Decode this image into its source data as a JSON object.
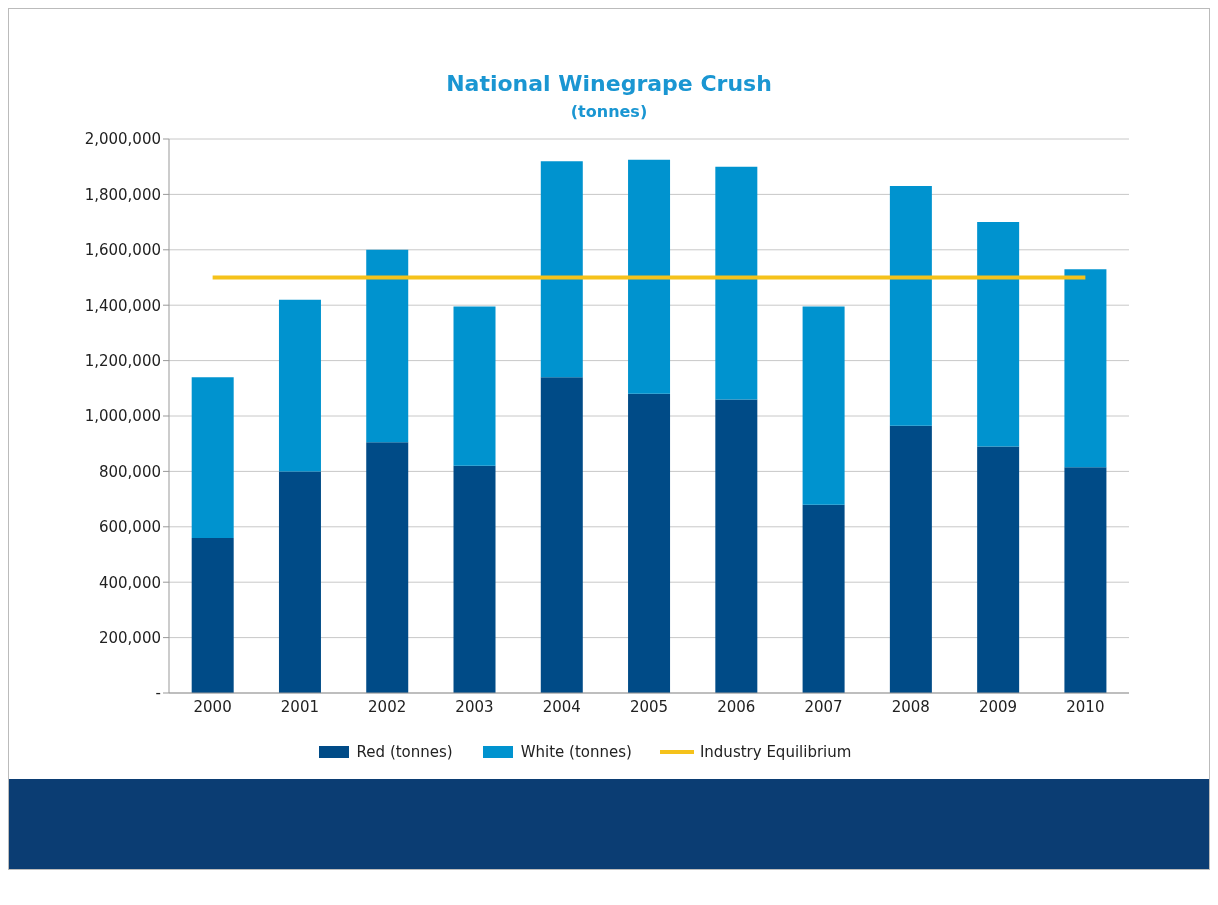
{
  "chart_data": {
    "type": "bar",
    "title": "National Winegrape Crush",
    "subtitle": "(tonnes)",
    "categories": [
      "2000",
      "2001",
      "2002",
      "2003",
      "2004",
      "2005",
      "2006",
      "2007",
      "2008",
      "2009",
      "2010"
    ],
    "stacked": true,
    "series": [
      {
        "name": "Red (tonnes)",
        "color": "#004b87",
        "values": [
          560000,
          800000,
          905000,
          820000,
          1140000,
          1080000,
          1060000,
          680000,
          965000,
          890000,
          815000
        ]
      },
      {
        "name": "White (tonnes)",
        "color": "#0093cf",
        "values": [
          580000,
          620000,
          695000,
          575000,
          780000,
          845000,
          840000,
          715000,
          865000,
          810000,
          715000
        ]
      },
      {
        "name": "Industry Equilibrium",
        "type": "line",
        "color": "#f5c21b",
        "marker": "none",
        "values": [
          1500000,
          1500000,
          1500000,
          1500000,
          1500000,
          1500000,
          1500000,
          1500000,
          1500000,
          1500000,
          1500000
        ]
      }
    ],
    "ylim": [
      0,
      2000000
    ],
    "yticks": [
      {
        "value": 0,
        "label": "-"
      },
      {
        "value": 200000,
        "label": "200,000"
      },
      {
        "value": 400000,
        "label": "400,000"
      },
      {
        "value": 600000,
        "label": "600,000"
      },
      {
        "value": 800000,
        "label": "800,000"
      },
      {
        "value": 1000000,
        "label": "1,000,000"
      },
      {
        "value": 1200000,
        "label": "1,200,000"
      },
      {
        "value": 1400000,
        "label": "1,400,000"
      },
      {
        "value": 1600000,
        "label": "1,600,000"
      },
      {
        "value": 1800000,
        "label": "1,800,000"
      },
      {
        "value": 2000000,
        "label": "2,000,000"
      }
    ],
    "grid": "y",
    "legend": "bottom"
  }
}
